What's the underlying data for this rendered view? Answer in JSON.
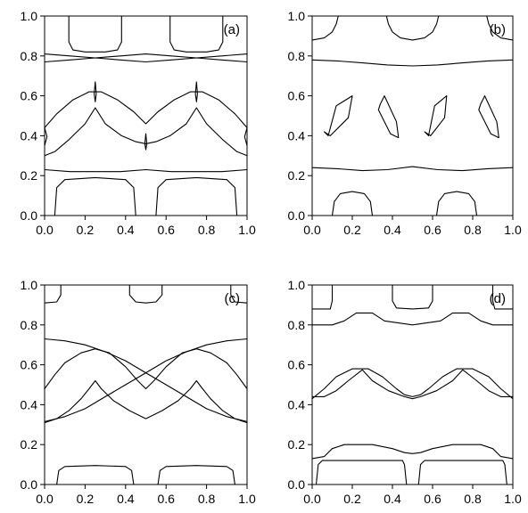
{
  "chart_data": [
    {
      "type": "line",
      "panel_label": "(a)",
      "label_corner": "top-right",
      "xlim": [
        0,
        1
      ],
      "ylim": [
        0,
        1
      ],
      "x_ticks": [
        "0.0",
        "0.2",
        "0.4",
        "0.6",
        "0.8",
        "1.0"
      ],
      "y_ticks": [
        "0.0",
        "0.2",
        "0.4",
        "0.6",
        "0.8",
        "1.0"
      ],
      "series": [
        {
          "x": [
            0.12,
            0.12,
            0.14,
            0.2,
            0.3,
            0.36,
            0.38,
            0.38
          ],
          "y": [
            1.0,
            0.87,
            0.83,
            0.82,
            0.82,
            0.83,
            0.87,
            1.0
          ]
        },
        {
          "x": [
            0.62,
            0.62,
            0.64,
            0.7,
            0.8,
            0.86,
            0.88,
            0.88
          ],
          "y": [
            1.0,
            0.87,
            0.83,
            0.82,
            0.82,
            0.83,
            0.87,
            1.0
          ]
        },
        {
          "x": [
            0.0,
            0.125,
            0.25,
            0.375,
            0.5,
            0.625,
            0.75,
            0.875,
            1.0
          ],
          "y": [
            0.81,
            0.8,
            0.79,
            0.8,
            0.81,
            0.8,
            0.79,
            0.8,
            0.81
          ]
        },
        {
          "x": [
            0.0,
            0.125,
            0.25,
            0.375,
            0.5,
            0.625,
            0.75,
            0.875,
            1.0
          ],
          "y": [
            0.77,
            0.78,
            0.79,
            0.78,
            0.77,
            0.78,
            0.79,
            0.78,
            0.77
          ]
        },
        {
          "x": [
            0.0,
            0.06,
            0.14,
            0.22,
            0.28,
            0.36,
            0.44,
            0.5,
            0.56,
            0.64,
            0.72,
            0.78,
            0.86,
            0.94,
            1.0
          ],
          "y": [
            0.44,
            0.51,
            0.58,
            0.62,
            0.62,
            0.58,
            0.52,
            0.46,
            0.52,
            0.58,
            0.62,
            0.62,
            0.58,
            0.51,
            0.44
          ]
        },
        {
          "x": [
            0.0,
            0.05,
            0.12,
            0.2,
            0.25,
            0.3,
            0.38,
            0.45,
            0.5,
            0.55,
            0.62,
            0.7,
            0.75,
            0.8,
            0.88,
            0.95,
            1.0
          ],
          "y": [
            0.3,
            0.32,
            0.38,
            0.46,
            0.54,
            0.46,
            0.4,
            0.37,
            0.36,
            0.37,
            0.4,
            0.46,
            0.54,
            0.46,
            0.38,
            0.32,
            0.3
          ]
        },
        {
          "x": [
            0.25,
            0.255,
            0.25,
            0.245,
            0.25
          ],
          "y": [
            0.57,
            0.61,
            0.67,
            0.61,
            0.57
          ]
        },
        {
          "x": [
            0.75,
            0.755,
            0.75,
            0.745,
            0.75
          ],
          "y": [
            0.57,
            0.61,
            0.67,
            0.61,
            0.57
          ]
        },
        {
          "x": [
            0.5,
            0.505,
            0.5,
            0.495,
            0.5
          ],
          "y": [
            0.33,
            0.36,
            0.41,
            0.36,
            0.33
          ]
        },
        {
          "x": [
            0.0,
            0.012,
            0.0
          ],
          "y": [
            0.35,
            0.395,
            0.44
          ]
        },
        {
          "x": [
            1.0,
            0.988,
            1.0
          ],
          "y": [
            0.35,
            0.395,
            0.44
          ]
        },
        {
          "x": [
            0.0,
            0.125,
            0.25,
            0.375,
            0.5,
            0.625,
            0.75,
            0.875,
            1.0
          ],
          "y": [
            0.23,
            0.22,
            0.22,
            0.22,
            0.23,
            0.22,
            0.22,
            0.22,
            0.23
          ]
        },
        {
          "x": [
            0.05,
            0.06,
            0.1,
            0.25,
            0.4,
            0.44,
            0.45
          ],
          "y": [
            0.0,
            0.14,
            0.18,
            0.19,
            0.18,
            0.14,
            0.0
          ]
        },
        {
          "x": [
            0.55,
            0.56,
            0.6,
            0.75,
            0.9,
            0.94,
            0.95
          ],
          "y": [
            0.0,
            0.14,
            0.18,
            0.19,
            0.18,
            0.14,
            0.0
          ]
        }
      ]
    },
    {
      "type": "line",
      "panel_label": "(b)",
      "label_corner": "top-right",
      "xlim": [
        0,
        1
      ],
      "ylim": [
        0,
        1
      ],
      "x_ticks": [
        "0.0",
        "0.2",
        "0.4",
        "0.6",
        "0.8",
        "1.0"
      ],
      "y_ticks": [
        "0.0",
        "0.2",
        "0.4",
        "0.6",
        "0.8",
        "1.0"
      ],
      "series": [
        {
          "x": [
            0.0,
            0.06,
            0.1,
            0.12,
            0.13
          ],
          "y": [
            0.88,
            0.89,
            0.92,
            0.96,
            1.0
          ]
        },
        {
          "x": [
            0.37,
            0.38,
            0.4,
            0.44,
            0.5,
            0.56,
            0.6,
            0.62,
            0.63
          ],
          "y": [
            1.0,
            0.96,
            0.92,
            0.89,
            0.88,
            0.89,
            0.92,
            0.96,
            1.0
          ]
        },
        {
          "x": [
            0.87,
            0.88,
            0.9,
            0.94,
            1.0
          ],
          "y": [
            1.0,
            0.96,
            0.92,
            0.89,
            0.88
          ]
        },
        {
          "x": [
            0.0,
            0.125,
            0.25,
            0.375,
            0.5,
            0.625,
            0.75,
            0.875,
            1.0
          ],
          "y": [
            0.78,
            0.775,
            0.765,
            0.755,
            0.75,
            0.755,
            0.765,
            0.775,
            0.78
          ]
        },
        {
          "x": [
            0.0,
            0.125,
            0.25,
            0.375,
            0.5,
            0.625,
            0.75,
            0.875,
            1.0
          ],
          "y": [
            0.24,
            0.235,
            0.225,
            0.23,
            0.245,
            0.23,
            0.225,
            0.235,
            0.24
          ]
        },
        {
          "x": [
            0.08,
            0.12,
            0.2,
            0.18,
            0.09,
            0.06,
            0.08
          ],
          "y": [
            0.4,
            0.55,
            0.6,
            0.49,
            0.4,
            0.42,
            0.4
          ]
        },
        {
          "x": [
            0.34,
            0.36,
            0.42,
            0.43,
            0.39,
            0.33,
            0.34
          ],
          "y": [
            0.56,
            0.6,
            0.47,
            0.39,
            0.41,
            0.53,
            0.56
          ]
        },
        {
          "x": [
            0.58,
            0.61,
            0.67,
            0.66,
            0.59,
            0.56,
            0.58
          ],
          "y": [
            0.4,
            0.55,
            0.6,
            0.49,
            0.4,
            0.42,
            0.4
          ]
        },
        {
          "x": [
            0.84,
            0.86,
            0.92,
            0.93,
            0.89,
            0.83,
            0.84
          ],
          "y": [
            0.56,
            0.6,
            0.47,
            0.39,
            0.41,
            0.53,
            0.56
          ]
        },
        {
          "x": [
            0.1,
            0.11,
            0.14,
            0.2,
            0.26,
            0.29,
            0.3
          ],
          "y": [
            0.0,
            0.07,
            0.11,
            0.12,
            0.11,
            0.07,
            0.0
          ]
        },
        {
          "x": [
            0.62,
            0.63,
            0.66,
            0.72,
            0.78,
            0.81,
            0.82
          ],
          "y": [
            0.0,
            0.07,
            0.11,
            0.12,
            0.11,
            0.07,
            0.0
          ]
        }
      ]
    },
    {
      "type": "line",
      "panel_label": "(c)",
      "label_corner": "top-right",
      "xlim": [
        0,
        1
      ],
      "ylim": [
        0,
        1
      ],
      "x_ticks": [
        "0.0",
        "0.2",
        "0.4",
        "0.6",
        "0.8",
        "1.0"
      ],
      "y_ticks": [
        "0.0",
        "0.2",
        "0.4",
        "0.6",
        "0.8",
        "1.0"
      ],
      "series": [
        {
          "x": [
            0.0,
            0.06,
            0.08,
            0.08
          ],
          "y": [
            0.91,
            0.915,
            0.95,
            1.0
          ]
        },
        {
          "x": [
            0.42,
            0.42,
            0.45,
            0.5,
            0.55,
            0.58,
            0.58
          ],
          "y": [
            1.0,
            0.95,
            0.915,
            0.91,
            0.915,
            0.95,
            1.0
          ]
        },
        {
          "x": [
            0.92,
            0.92,
            0.94,
            1.0
          ],
          "y": [
            1.0,
            0.95,
            0.915,
            0.91
          ]
        },
        {
          "x": [
            0.0,
            0.05,
            0.1,
            0.18,
            0.25,
            0.32,
            0.4,
            0.46,
            0.5,
            0.54,
            0.6,
            0.68,
            0.75,
            0.82,
            0.9,
            0.95,
            1.0
          ],
          "y": [
            0.48,
            0.55,
            0.61,
            0.66,
            0.68,
            0.66,
            0.59,
            0.52,
            0.48,
            0.52,
            0.59,
            0.66,
            0.68,
            0.66,
            0.61,
            0.55,
            0.48
          ]
        },
        {
          "x": [
            0.0,
            0.06,
            0.12,
            0.18,
            0.22,
            0.25,
            0.28,
            0.34,
            0.42,
            0.5,
            0.58,
            0.66,
            0.72,
            0.75,
            0.78,
            0.82,
            0.88,
            0.94,
            1.0
          ],
          "y": [
            0.31,
            0.33,
            0.37,
            0.43,
            0.48,
            0.52,
            0.48,
            0.42,
            0.37,
            0.33,
            0.37,
            0.42,
            0.48,
            0.52,
            0.48,
            0.43,
            0.37,
            0.33,
            0.31
          ]
        },
        {
          "x": [
            0.0,
            0.1,
            0.2,
            0.3,
            0.4,
            0.5,
            0.6,
            0.7,
            0.8,
            0.9,
            1.0
          ],
          "y": [
            0.73,
            0.72,
            0.7,
            0.665,
            0.62,
            0.56,
            0.5,
            0.44,
            0.38,
            0.34,
            0.315
          ]
        },
        {
          "x": [
            0.0,
            0.1,
            0.2,
            0.3,
            0.4,
            0.5,
            0.6,
            0.7,
            0.8,
            0.9,
            1.0
          ],
          "y": [
            0.315,
            0.34,
            0.38,
            0.44,
            0.5,
            0.56,
            0.62,
            0.665,
            0.7,
            0.72,
            0.73
          ]
        },
        {
          "x": [
            0.06,
            0.07,
            0.1,
            0.25,
            0.4,
            0.43,
            0.44
          ],
          "y": [
            0.0,
            0.07,
            0.09,
            0.095,
            0.09,
            0.07,
            0.0
          ]
        },
        {
          "x": [
            0.56,
            0.57,
            0.6,
            0.75,
            0.9,
            0.93,
            0.94
          ],
          "y": [
            0.0,
            0.07,
            0.09,
            0.095,
            0.09,
            0.07,
            0.0
          ]
        }
      ]
    },
    {
      "type": "line",
      "panel_label": "(d)",
      "label_corner": "top-right",
      "xlim": [
        0,
        1
      ],
      "ylim": [
        0,
        1
      ],
      "x_ticks": [
        "0.0",
        "0.2",
        "0.4",
        "0.6",
        "0.8",
        "1.0"
      ],
      "y_ticks": [
        "0.0",
        "0.2",
        "0.4",
        "0.6",
        "0.8",
        "1.0"
      ],
      "series": [
        {
          "x": [
            0.0,
            0.09,
            0.1,
            0.1
          ],
          "y": [
            0.88,
            0.88,
            0.92,
            1.0
          ]
        },
        {
          "x": [
            0.4,
            0.4,
            0.42,
            0.5,
            0.58,
            0.6,
            0.6
          ],
          "y": [
            1.0,
            0.92,
            0.885,
            0.88,
            0.885,
            0.92,
            1.0
          ]
        },
        {
          "x": [
            0.9,
            0.9,
            0.91,
            1.0
          ],
          "y": [
            1.0,
            0.92,
            0.88,
            0.88
          ]
        },
        {
          "x": [
            0.0,
            0.1,
            0.16,
            0.22,
            0.3,
            0.36,
            0.5,
            0.64,
            0.7,
            0.78,
            0.84,
            0.9,
            1.0
          ],
          "y": [
            0.8,
            0.8,
            0.82,
            0.86,
            0.86,
            0.82,
            0.8,
            0.82,
            0.86,
            0.86,
            0.82,
            0.8,
            0.8
          ]
        },
        {
          "x": [
            0.0,
            0.06,
            0.12,
            0.2,
            0.28,
            0.35,
            0.42,
            0.46,
            0.5,
            0.54,
            0.58,
            0.65,
            0.72,
            0.8,
            0.88,
            0.94,
            1.0
          ],
          "y": [
            0.43,
            0.48,
            0.54,
            0.58,
            0.58,
            0.54,
            0.48,
            0.45,
            0.44,
            0.45,
            0.48,
            0.54,
            0.58,
            0.58,
            0.54,
            0.48,
            0.43
          ]
        },
        {
          "x": [
            0.0,
            0.06,
            0.12,
            0.18,
            0.25,
            0.3,
            0.38,
            0.46,
            0.5,
            0.54,
            0.62,
            0.7,
            0.75,
            0.82,
            0.88,
            0.94,
            1.0
          ],
          "y": [
            0.44,
            0.44,
            0.47,
            0.52,
            0.575,
            0.52,
            0.47,
            0.44,
            0.43,
            0.44,
            0.47,
            0.52,
            0.575,
            0.52,
            0.47,
            0.44,
            0.44
          ]
        },
        {
          "x": [
            0.0,
            0.06,
            0.1,
            0.16,
            0.3,
            0.4,
            0.46,
            0.5,
            0.54,
            0.6,
            0.7,
            0.84,
            0.9,
            0.94,
            1.0
          ],
          "y": [
            0.13,
            0.14,
            0.18,
            0.2,
            0.2,
            0.18,
            0.16,
            0.155,
            0.16,
            0.18,
            0.2,
            0.2,
            0.18,
            0.14,
            0.13
          ]
        },
        {
          "x": [
            0.02,
            0.03,
            0.05,
            0.25,
            0.45,
            0.46,
            0.47
          ],
          "y": [
            0.0,
            0.1,
            0.12,
            0.12,
            0.12,
            0.1,
            0.0
          ]
        },
        {
          "x": [
            0.53,
            0.54,
            0.56,
            0.75,
            0.95,
            0.96,
            0.97
          ],
          "y": [
            0.0,
            0.1,
            0.12,
            0.12,
            0.12,
            0.1,
            0.0
          ]
        }
      ]
    }
  ]
}
